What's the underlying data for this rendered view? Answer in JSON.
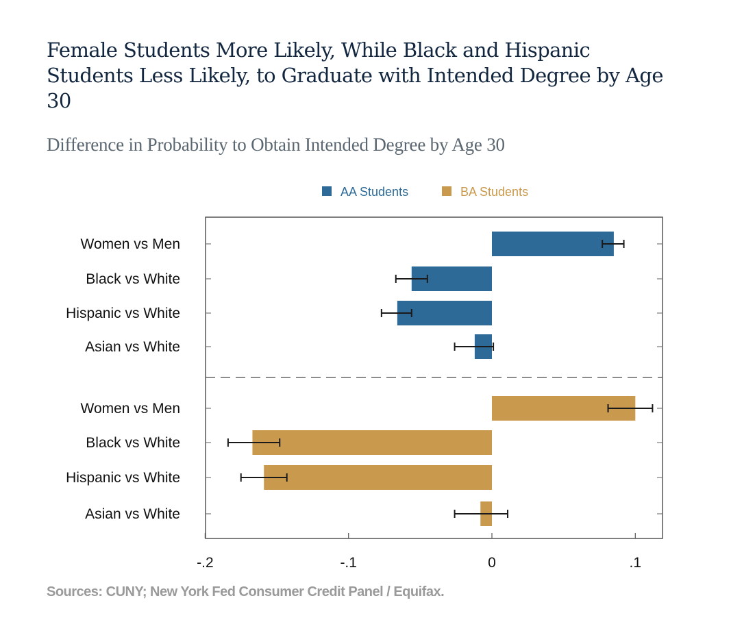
{
  "title": "Female Students More Likely, While Black and Hispanic Students Less Likely, to Graduate with Intended Degree by Age 30",
  "subtitle": "Difference in Probability to Obtain Intended Degree by Age 30",
  "source": "Sources: CUNY; New York Fed Consumer Credit Panel / Equifax.",
  "chart_data": {
    "type": "bar",
    "orientation": "horizontal",
    "title": "Difference in Probability to Obtain Intended Degree by Age 30",
    "xlabel": "",
    "ylabel": "",
    "xlim": [
      -0.2,
      0.12
    ],
    "xticks": [
      -0.2,
      -0.1,
      0,
      0.1
    ],
    "xtick_labels": [
      "-.2",
      "-.1",
      "0",
      ".1"
    ],
    "grid": false,
    "legend_position": "top-center",
    "categories": [
      "Women vs Men",
      "Black vs White",
      "Hispanic vs White",
      "Asian vs White"
    ],
    "series": [
      {
        "name": "AA Students",
        "color": "#2e6a97",
        "values": [
          0.085,
          -0.056,
          -0.066,
          -0.012
        ],
        "ci_low": [
          0.077,
          -0.067,
          -0.077,
          -0.026
        ],
        "ci_high": [
          0.092,
          -0.045,
          -0.056,
          0.001
        ]
      },
      {
        "name": "BA Students",
        "color": "#c9994d",
        "values": [
          0.1,
          -0.167,
          -0.159,
          -0.008
        ],
        "ci_low": [
          0.081,
          -0.184,
          -0.175,
          -0.026
        ],
        "ci_high": [
          0.112,
          -0.148,
          -0.143,
          0.011
        ]
      }
    ]
  }
}
